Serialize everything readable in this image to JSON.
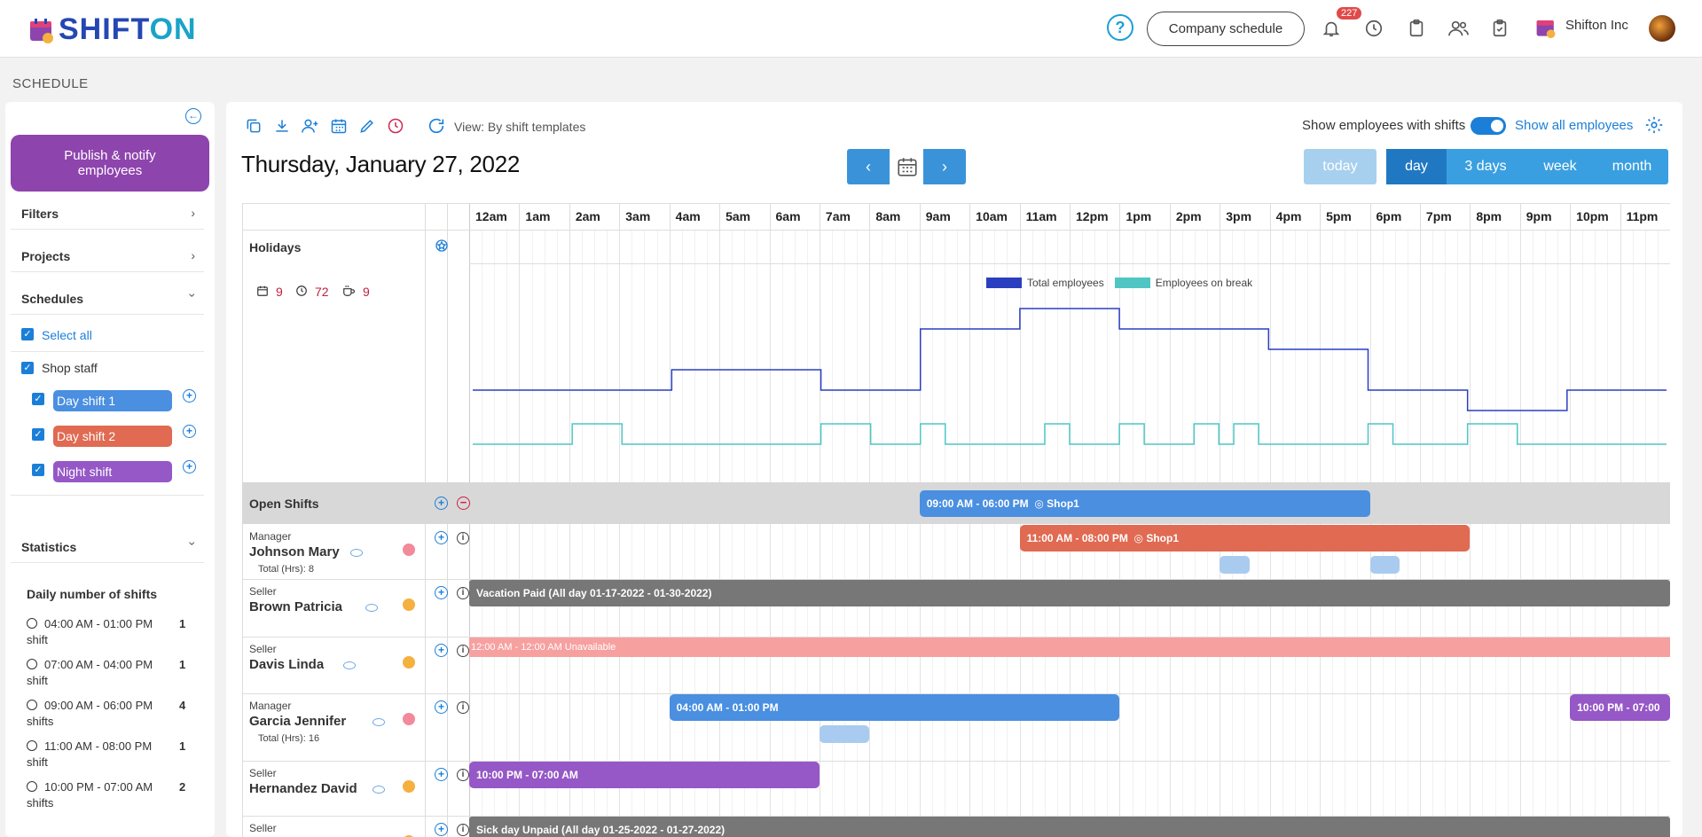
{
  "brand": {
    "name_a": "SHIFT",
    "name_b": "ON"
  },
  "topbar": {
    "company_schedule": "Company schedule",
    "notifications_count": "227",
    "org_name": "Shifton Inc"
  },
  "page_title": "SCHEDULE",
  "sidebar": {
    "publish": "Publish & notify employees",
    "filters": "Filters",
    "projects": "Projects",
    "schedules": "Schedules",
    "select_all": "Select all",
    "group": "Shop staff",
    "shifts": [
      {
        "label": "Day shift 1",
        "color": "#4a8fe0"
      },
      {
        "label": "Day shift 2",
        "color": "#e06a52"
      },
      {
        "label": "Night shift",
        "color": "#9558c6"
      }
    ],
    "statistics": "Statistics",
    "daily_title": "Daily number of shifts",
    "stats": [
      {
        "time": "04:00 AM - 01:00 PM",
        "count": "1",
        "unit": "shift"
      },
      {
        "time": "07:00 AM - 04:00 PM",
        "count": "1",
        "unit": "shift"
      },
      {
        "time": "09:00 AM - 06:00 PM",
        "count": "4",
        "unit": "shifts"
      },
      {
        "time": "11:00 AM - 08:00 PM",
        "count": "1",
        "unit": "shift"
      },
      {
        "time": "10:00 PM - 07:00 AM",
        "count": "2",
        "unit": "shifts"
      }
    ]
  },
  "toolbar": {
    "view_label": "View: By shift templates",
    "date": "Thursday, January 27, 2022",
    "show_with_shifts": "Show employees with shifts",
    "show_all": "Show all employees",
    "today": "today",
    "ranges": [
      "day",
      "3 days",
      "week",
      "month"
    ]
  },
  "hours": [
    "12am",
    "1am",
    "2am",
    "3am",
    "4am",
    "5am",
    "6am",
    "7am",
    "8am",
    "9am",
    "10am",
    "11am",
    "12pm",
    "1pm",
    "2pm",
    "3pm",
    "4pm",
    "5pm",
    "6pm",
    "7pm",
    "8pm",
    "9pm",
    "10pm",
    "11pm"
  ],
  "holidays": "Holidays",
  "summary": {
    "shifts": "9",
    "hours": "72",
    "breaks": "9"
  },
  "chart_data": {
    "type": "line",
    "x_unit": "hour of day",
    "xlim": [
      0,
      24
    ],
    "series": [
      {
        "name": "Total employees",
        "color": "#2a3fc0",
        "points": [
          [
            0,
            1
          ],
          [
            4,
            1
          ],
          [
            4,
            2
          ],
          [
            7,
            2
          ],
          [
            7,
            1
          ],
          [
            9,
            1
          ],
          [
            9,
            4
          ],
          [
            11,
            4
          ],
          [
            11,
            5
          ],
          [
            13,
            5
          ],
          [
            13,
            4
          ],
          [
            16,
            4
          ],
          [
            16,
            3
          ],
          [
            18,
            3
          ],
          [
            18,
            1
          ],
          [
            20,
            1
          ],
          [
            20,
            0
          ],
          [
            22,
            0
          ],
          [
            22,
            1
          ],
          [
            24,
            1
          ]
        ]
      },
      {
        "name": "Employees on break",
        "color": "#4fc6c4",
        "points": [
          [
            0,
            0
          ],
          [
            2,
            0
          ],
          [
            2,
            1
          ],
          [
            3,
            1
          ],
          [
            3,
            0
          ],
          [
            7,
            0
          ],
          [
            7,
            1
          ],
          [
            8,
            1
          ],
          [
            8,
            0
          ],
          [
            9,
            0
          ],
          [
            9,
            1
          ],
          [
            9.5,
            1
          ],
          [
            9.5,
            0
          ],
          [
            11.5,
            0
          ],
          [
            11.5,
            1
          ],
          [
            12,
            1
          ],
          [
            12,
            0
          ],
          [
            13,
            0
          ],
          [
            13,
            1
          ],
          [
            13.5,
            1
          ],
          [
            13.5,
            0
          ],
          [
            14.5,
            0
          ],
          [
            14.5,
            1
          ],
          [
            15,
            1
          ],
          [
            15,
            0
          ],
          [
            15.3,
            0
          ],
          [
            15.3,
            1
          ],
          [
            15.8,
            1
          ],
          [
            15.8,
            0
          ],
          [
            18,
            0
          ],
          [
            18,
            1
          ],
          [
            18.5,
            1
          ],
          [
            18.5,
            0
          ],
          [
            20,
            0
          ],
          [
            20,
            1
          ],
          [
            21,
            1
          ],
          [
            21,
            0
          ],
          [
            24,
            0
          ]
        ]
      }
    ]
  },
  "open_shifts": {
    "label": "Open Shifts",
    "shift": "09:00 AM - 06:00 PM",
    "location": "Shop1"
  },
  "employees": [
    {
      "role": "Manager",
      "name": "Johnson Mary",
      "total": "Total (Hrs):  8",
      "dot": "#f28a9a",
      "shift": "11:00 AM - 08:00 PM",
      "location": "Shop1"
    },
    {
      "role": "Seller",
      "name": "Brown Patricia",
      "dot": "#f5b040",
      "event": "Vacation   Paid   (All day 01-17-2022 - 01-30-2022)"
    },
    {
      "role": "Seller",
      "name": "Davis Linda",
      "dot": "#f5b040",
      "event": "12:00 AM - 12:00 AM Unavailable"
    },
    {
      "role": "Manager",
      "name": "Garcia Jennifer",
      "total": "Total (Hrs):  16",
      "dot": "#f28a9a",
      "shift": "04:00 AM - 01:00 PM",
      "shift2": "10:00 PM - 07:00"
    },
    {
      "role": "Seller",
      "name": "Hernandez David",
      "dot": "#f5b040",
      "shift": "10:00 PM - 07:00 AM"
    },
    {
      "role": "Seller",
      "name": "",
      "dot": "#f5b040",
      "event": "Sick day   Unpaid   (All day 01-25-2022 - 01-27-2022)"
    }
  ],
  "legend": {
    "total": "Total employees",
    "break": "Employees on break"
  }
}
